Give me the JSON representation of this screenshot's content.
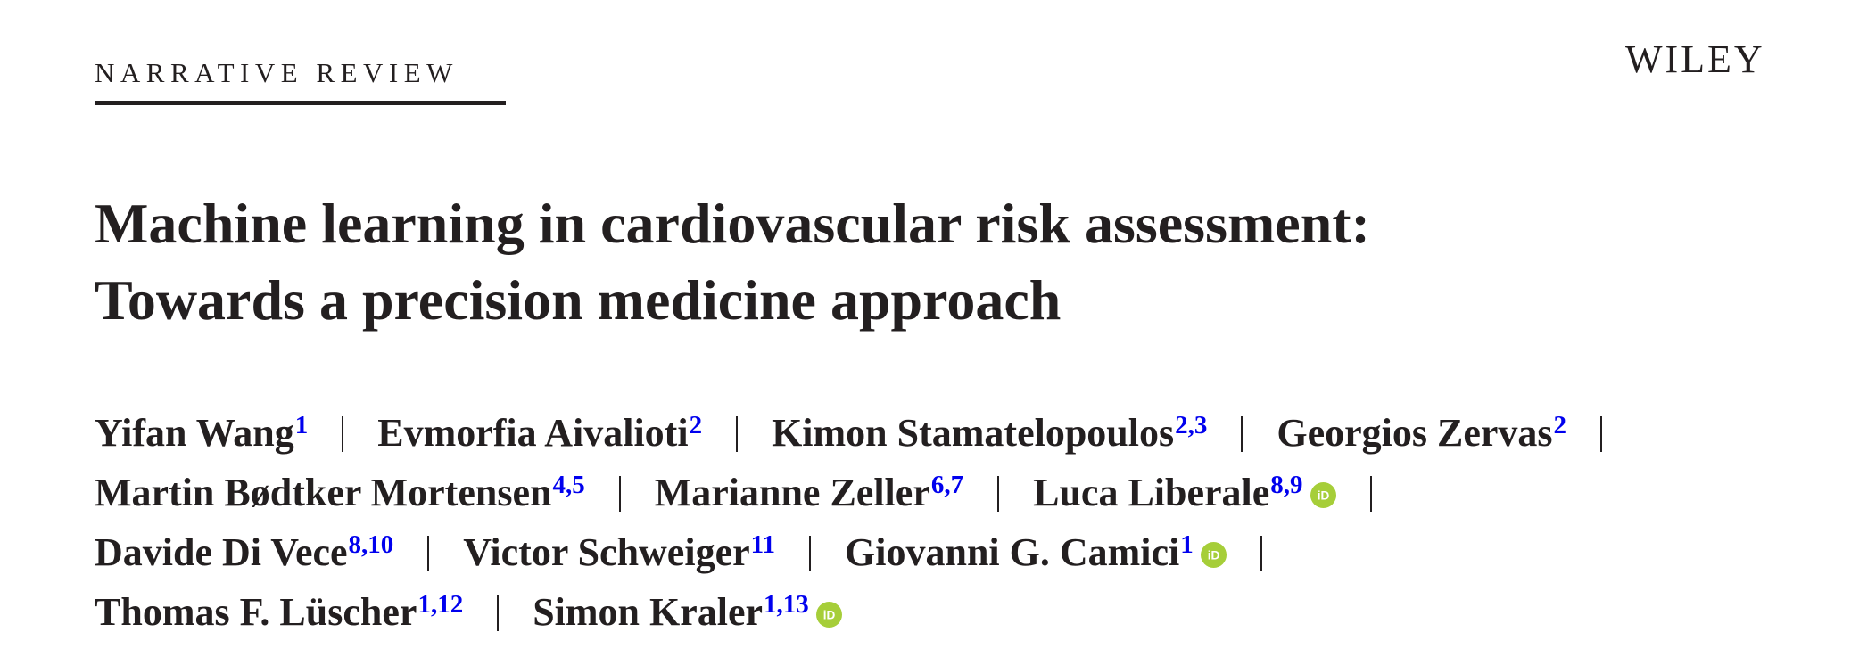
{
  "header": {
    "section_label": "NARRATIVE REVIEW",
    "publisher": "WILEY"
  },
  "title": {
    "line1": "Machine learning in cardiovascular risk assessment:",
    "line2": "Towards a precision medicine approach"
  },
  "authors": [
    {
      "name": "Yifan Wang",
      "aff": "1"
    },
    {
      "name": "Evmorfia Aivalioti",
      "aff": "2"
    },
    {
      "name": "Kimon Stamatelopoulos",
      "aff": "2,3"
    },
    {
      "name": "Georgios Zervas",
      "aff": "2"
    },
    {
      "name": "Martin Bødtker Mortensen",
      "aff": "4,5"
    },
    {
      "name": "Marianne Zeller",
      "aff": "6,7"
    },
    {
      "name": "Luca Liberale",
      "aff": "8,9",
      "orcid": true
    },
    {
      "name": "Davide Di Vece",
      "aff": "8,10"
    },
    {
      "name": "Victor Schweiger",
      "aff": "11"
    },
    {
      "name": "Giovanni G. Camici",
      "aff": "1",
      "orcid": true
    },
    {
      "name": "Thomas F. Lüscher",
      "aff": "1,12"
    },
    {
      "name": "Simon Kraler",
      "aff": "1,13",
      "orcid": true
    }
  ],
  "icons": {
    "orcid": "orcid-icon",
    "orcid_color": "#a6ce39"
  },
  "colors": {
    "text": "#231f20",
    "affiliation_link": "#0000ee"
  }
}
